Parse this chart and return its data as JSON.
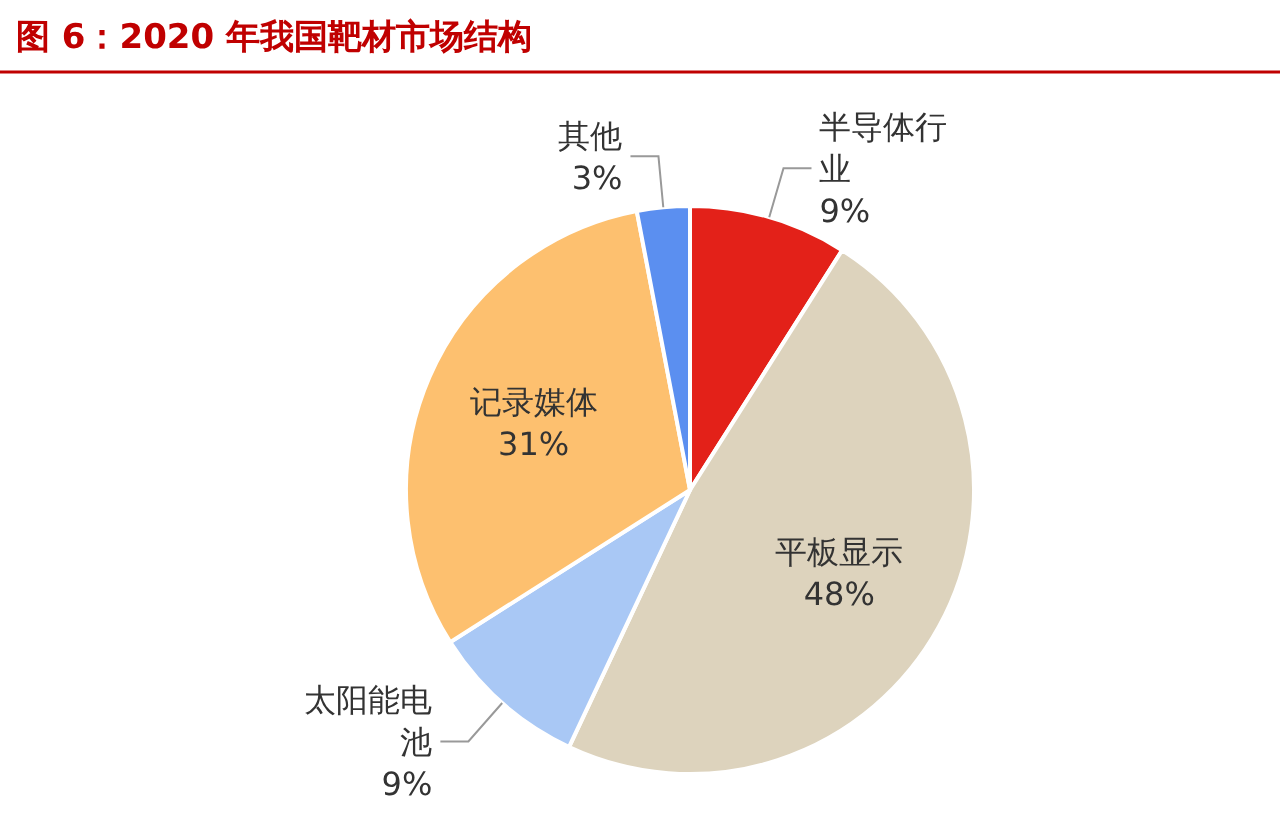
{
  "chart_data": {
    "type": "pie",
    "title": "图 6：2020 年我国靶材市场结构",
    "categories": [
      "半导体行业",
      "平板显示",
      "太阳能电池",
      "记录媒体",
      "其他"
    ],
    "values": [
      9,
      48,
      9,
      31,
      3
    ],
    "value_labels": [
      "9%",
      "48%",
      "9%",
      "31%",
      "3%"
    ],
    "colors": [
      "#e32119",
      "#ddd3bd",
      "#a9c8f5",
      "#fdc06f",
      "#5b8ff0"
    ],
    "legend": false
  }
}
